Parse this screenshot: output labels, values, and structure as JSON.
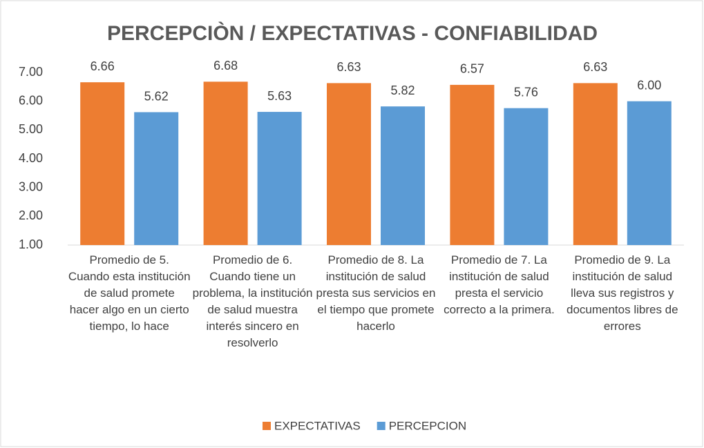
{
  "chart_data": {
    "type": "bar",
    "title": "PERCEPCIÒN / EXPECTATIVAS  - CONFIABILIDAD",
    "categories": [
      "Promedio de 5. Cuando esta institución de salud promete hacer algo en un cierto tiempo, lo hace",
      "Promedio de 6. Cuando tiene un problema, la institución  de salud muestra interés sincero en resolverlo",
      "Promedio de 8. La institución  de salud presta sus servicios en el tiempo que promete hacerlo",
      "Promedio de 7. La institución  de salud presta el servicio correcto a la primera.",
      "Promedio de 9. La institución  de salud lleva sus registros y documentos libres de errores"
    ],
    "series": [
      {
        "name": "EXPECTATIVAS",
        "color": "#ed7d31",
        "values": [
          6.66,
          6.68,
          6.63,
          6.57,
          6.63
        ],
        "value_labels": [
          "6.66",
          "6.68",
          "6.63",
          "6.57",
          "6.63"
        ]
      },
      {
        "name": "PERCEPCION",
        "color": "#5b9bd5",
        "values": [
          5.62,
          5.63,
          5.82,
          5.76,
          6.0
        ],
        "value_labels": [
          "5.62",
          "5.63",
          "5.82",
          "5.76",
          "6.00"
        ]
      }
    ],
    "ylim": [
      1,
      7
    ],
    "yticks": [
      {
        "value": 1,
        "label": "1.00"
      },
      {
        "value": 2,
        "label": "2.00"
      },
      {
        "value": 3,
        "label": "3.00"
      },
      {
        "value": 4,
        "label": "4.00"
      },
      {
        "value": 5,
        "label": "5.00"
      },
      {
        "value": 6,
        "label": "6.00"
      },
      {
        "value": 7,
        "label": "7.00"
      }
    ],
    "grid": false,
    "legend": "bottom"
  }
}
